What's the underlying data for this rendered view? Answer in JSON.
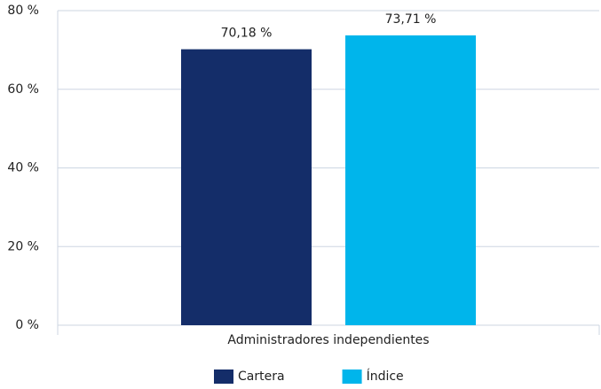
{
  "chart_data": {
    "type": "bar",
    "categories": [
      "Administradores independientes"
    ],
    "series": [
      {
        "name": "Cartera",
        "color": "#142d69",
        "values": [
          70.18
        ],
        "value_labels": [
          "70,18 %"
        ]
      },
      {
        "name": "Índice",
        "color": "#00b5eb",
        "values": [
          73.71
        ],
        "value_labels": [
          "73,71 %"
        ]
      }
    ],
    "ylim": [
      0,
      80
    ],
    "yticks": [
      {
        "value": 0,
        "label": "0 %"
      },
      {
        "value": 20,
        "label": "20 %"
      },
      {
        "value": 40,
        "label": "40 %"
      },
      {
        "value": 60,
        "label": "60 %"
      },
      {
        "value": 80,
        "label": "80 %"
      }
    ],
    "grid": true,
    "legend": "bottom"
  }
}
